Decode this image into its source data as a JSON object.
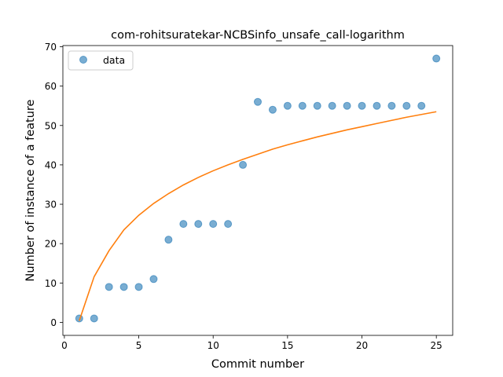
{
  "chart_data": {
    "type": "scatter",
    "title": "com-rohitsuratekar-NCBSinfo_unsafe_call-logarithm",
    "xlabel": "Commit number",
    "ylabel": "Number of instance of a feature",
    "xlim": [
      -0.1,
      26.1
    ],
    "ylim": [
      -3.3,
      70.3
    ],
    "xticks": [
      0,
      5,
      10,
      15,
      20,
      25
    ],
    "yticks": [
      0,
      10,
      20,
      30,
      40,
      50,
      60,
      70
    ],
    "legend": {
      "placement": "top-left",
      "entries": [
        "data"
      ]
    },
    "grid": false,
    "series": [
      {
        "name": "data",
        "kind": "scatter",
        "color": "#1f77b4",
        "x": [
          1,
          2,
          3,
          4,
          5,
          6,
          7,
          8,
          9,
          10,
          11,
          12,
          13,
          14,
          15,
          16,
          17,
          18,
          19,
          20,
          21,
          22,
          23,
          24,
          25
        ],
        "y": [
          1,
          1,
          9,
          9,
          9,
          11,
          21,
          25,
          25,
          25,
          25,
          40,
          56,
          54,
          55,
          55,
          55,
          55,
          55,
          55,
          55,
          55,
          55,
          55,
          67
        ]
      },
      {
        "kind": "line",
        "color": "#ff7f0e",
        "x": [
          1,
          2,
          3,
          4,
          5,
          6,
          7,
          8,
          9,
          10,
          11,
          12,
          13,
          14,
          15,
          16,
          17,
          18,
          19,
          20,
          21,
          22,
          23,
          24,
          25
        ],
        "y": [
          0.4,
          11.6,
          18.2,
          23.5,
          27.2,
          30.2,
          32.7,
          34.9,
          36.8,
          38.5,
          40.0,
          41.4,
          42.7,
          44.0,
          45.1,
          46.1,
          47.1,
          48.0,
          48.9,
          49.7,
          50.5,
          51.3,
          52.1,
          52.8,
          53.5
        ]
      }
    ]
  }
}
